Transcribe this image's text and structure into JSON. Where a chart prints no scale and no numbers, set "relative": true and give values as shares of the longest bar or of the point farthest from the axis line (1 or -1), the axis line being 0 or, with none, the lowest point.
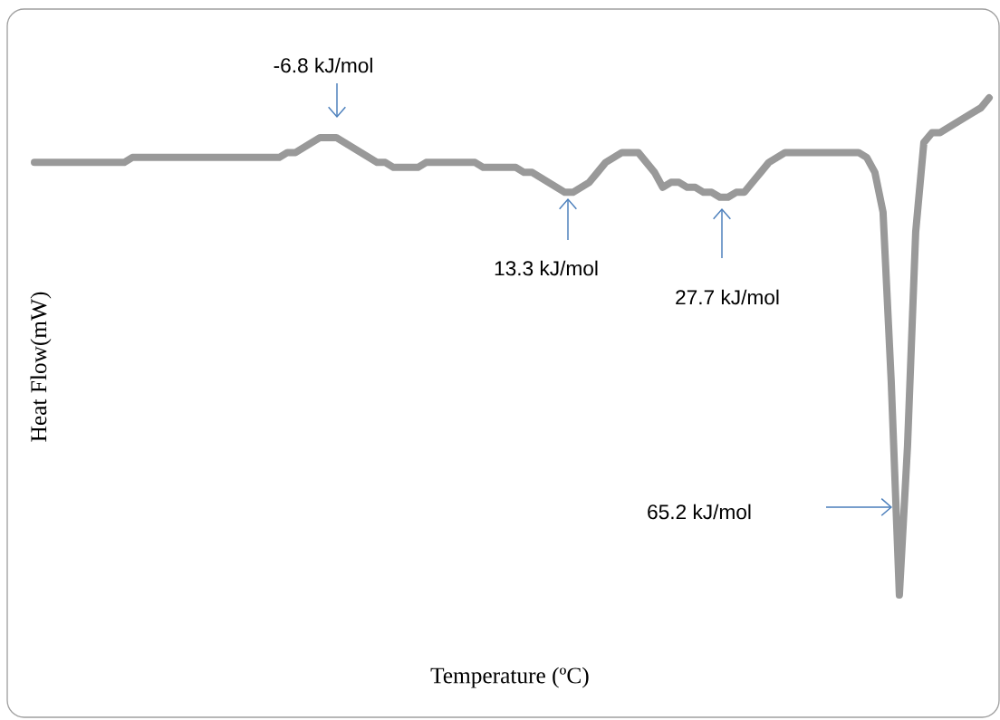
{
  "chart_data": {
    "type": "line",
    "relative": true,
    "xlabel": "Temperature (ºC)",
    "ylabel": "Heat Flow(mW)",
    "color": "#999999",
    "annotations": [
      "-6.8 kJ/mol",
      "13.3 kJ/mol",
      "27.7 kJ/mol",
      "65.2 kJ/mol"
    ],
    "categories": [
      null,
      null,
      null,
      null,
      null,
      null,
      null,
      null,
      null,
      null,
      null,
      null,
      null,
      null,
      null,
      null,
      null,
      null,
      null,
      null,
      null,
      null,
      null,
      null,
      null,
      null,
      null,
      null,
      null,
      null,
      null,
      null,
      null,
      null,
      null,
      null,
      null,
      null,
      null,
      null,
      null,
      null,
      null,
      null,
      null,
      null,
      null,
      null,
      null,
      null,
      null,
      null,
      null,
      null,
      null,
      null,
      null,
      null,
      null,
      null,
      null,
      null,
      null,
      null,
      null,
      null,
      null,
      null,
      null,
      null,
      null,
      null,
      null,
      null,
      null,
      null,
      null,
      null,
      null,
      null,
      null,
      null,
      null,
      null,
      null,
      null,
      null,
      null,
      null,
      null,
      null,
      null,
      null,
      null,
      null,
      null,
      null,
      null,
      null,
      null,
      null,
      null,
      null,
      null,
      null,
      null,
      null,
      null,
      null,
      null,
      null,
      null,
      null,
      null,
      null,
      null,
      null,
      null
    ],
    "values": [
      0.87,
      0.87,
      0.87,
      0.87,
      0.87,
      0.87,
      0.87,
      0.87,
      0.87,
      0.87,
      0.87,
      0.87,
      0.88,
      0.88,
      0.88,
      0.88,
      0.88,
      0.88,
      0.88,
      0.88,
      0.88,
      0.88,
      0.88,
      0.88,
      0.88,
      0.88,
      0.88,
      0.88,
      0.88,
      0.88,
      0.88,
      0.89,
      0.89,
      0.9,
      0.91,
      0.92,
      0.92,
      0.92,
      0.91,
      0.9,
      0.89,
      0.88,
      0.87,
      0.87,
      0.86,
      0.86,
      0.86,
      0.86,
      0.87,
      0.87,
      0.87,
      0.87,
      0.87,
      0.87,
      0.87,
      0.86,
      0.86,
      0.86,
      0.86,
      0.86,
      0.85,
      0.85,
      0.84,
      0.83,
      0.82,
      0.81,
      0.81,
      0.82,
      0.83,
      0.85,
      0.87,
      0.88,
      0.89,
      0.89,
      0.89,
      0.87,
      0.85,
      0.82,
      0.83,
      0.83,
      0.82,
      0.82,
      0.81,
      0.81,
      0.8,
      0.8,
      0.81,
      0.81,
      0.83,
      0.85,
      0.87,
      0.88,
      0.89,
      0.89,
      0.89,
      0.89,
      0.89,
      0.89,
      0.89,
      0.89,
      0.89,
      0.89,
      0.88,
      0.85,
      0.77,
      0.43,
      0,
      0.3,
      0.73,
      0.91,
      0.93,
      0.93,
      0.94,
      0.95,
      0.96,
      0.97,
      0.98,
      1
    ]
  }
}
